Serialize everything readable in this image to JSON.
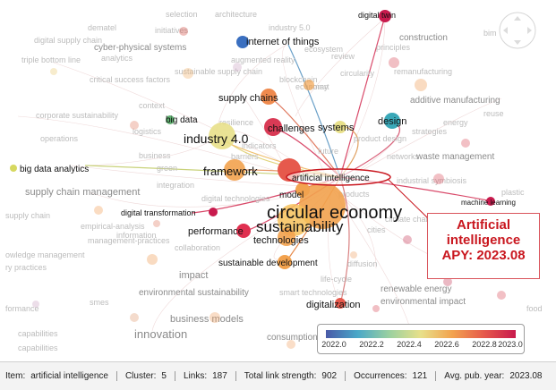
{
  "callout": {
    "line1": "Artificial",
    "line2": "intelligence",
    "line3": "APY: 2023.08"
  },
  "legend": {
    "ticks": [
      "2022.0",
      "2022.2",
      "2022.4",
      "2022.6",
      "2022.8",
      "2023.0"
    ]
  },
  "colors": {
    "highlight": "#c9171f",
    "scale_low": "#4a5aa8",
    "scale_high": "#c81a4d"
  },
  "status": {
    "item_label": "Item:",
    "item_value": "artificial intelligence",
    "cluster_label": "Cluster:",
    "cluster_value": "5",
    "links_label": "Links:",
    "links_value": "187",
    "strength_label": "Total link strength:",
    "strength_value": "902",
    "occ_label": "Occurrences:",
    "occ_value": "121",
    "apy_label": "Avg. pub. year:",
    "apy_value": "2023.08"
  },
  "main_labels": {
    "circular_economy": "circular economy",
    "sustainability": "sustainability",
    "artificial_intelligence": "artificial intelligence",
    "industry40": "industry 4.0",
    "framework": "framework",
    "technologies": "technologies",
    "model": "model",
    "challenges": "challenges",
    "supply_chains": "supply chains",
    "internet_of_things": "internet of things",
    "digital_twin": "digital twin",
    "design": "design",
    "big_data": "big data",
    "big_data_analytics": "big data analytics",
    "digital_transformation": "digital transformation",
    "performance": "performance",
    "sustainable_development": "sustainable development",
    "digitalization": "digitalization",
    "machine_learning": "machine learning",
    "systems": "systems",
    "innovation": "innovation",
    "business_models": "business models",
    "supply_chain_management": "supply chain management",
    "additive_manufacturing": "additive manufacturing",
    "waste_management": "waste management",
    "construction": "construction",
    "economy": "economy",
    "future": "future",
    "impact": "impact",
    "environmental_sustainability": "environmental sustainability",
    "context": "context",
    "integration": "integration",
    "information": "information",
    "collaboration": "collaboration",
    "diffusion": "diffusion",
    "cities": "cities",
    "products": "products",
    "logistics": "logistics",
    "green": "green",
    "business": "business",
    "operations": "operations",
    "smes": "smes",
    "capabilities": "capabilities",
    "consumption": "consumption",
    "life_cycle": "life-cycle",
    "renewable_energy": "renewable energy",
    "environmental_impact": "environmental impact",
    "climate_change": "climate change",
    "industrial_symbiosis": "industrial symbiosis",
    "networks": "networks",
    "principles": "principles",
    "selection": "selection",
    "initiatives": "initiatives",
    "dematel": "dematel",
    "industry50": "industry 5.0",
    "cyber_physical_systems": "cyber-physical systems",
    "triple_bottom_line": "triple bottom line",
    "critical_success_factors": "critical success factors",
    "corporate_sustainability": "corporate sustainability",
    "supply_chain": "supply chain",
    "knowledge_management": "knowledge management",
    "empirical_analysis": "empirical-analysis",
    "management_practices": "management-practices",
    "augmented_reality": "augmented reality",
    "blockchain": "blockchain",
    "smart": "smart",
    "reuse": "reuse",
    "bim": "bim",
    "plastic": "plastic",
    "food": "food",
    "product_design": "product design",
    "indicators": "indicators",
    "barriers": "barriers",
    "analytics": "analytics",
    "digital_supply_chain": "digital supply chain",
    "architecture": "architecture",
    "ecosystem": "ecosystem",
    "review": "review",
    "resilience": "resilience",
    "digital_technologies": "digital technologies",
    "formance": "formance",
    "ry_practices": "ry practices",
    "owledge_management": "owledge management",
    "capabilities2": "capabilities",
    "smart_technologies": "smart technologies",
    "sustainable_supply_chain": "sustainable supply chain",
    "remanufacturing": "remanufacturing",
    "circularity": "circularity",
    "energy": "energy",
    "strategies": "strategies"
  }
}
